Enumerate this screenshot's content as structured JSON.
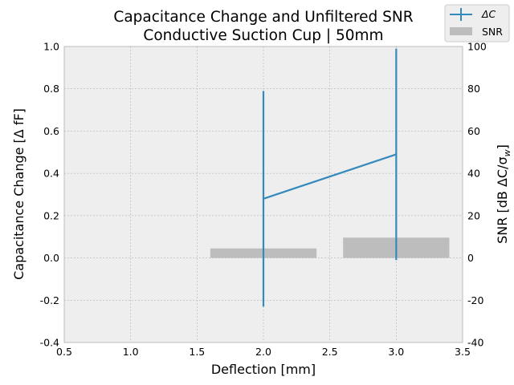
{
  "chart_data": {
    "type": "bar+errorbar",
    "title_lines": [
      "Capacitance Change and Unfiltered SNR",
      "Conductive Suction Cup | 50mm"
    ],
    "xlabel": "Deflection [mm]",
    "ylabel_left": "Capacitance Change [Δ fF]",
    "ylabel_right": "SNR [dB ΔC/σ",
    "ylabel_right_sub": "w",
    "ylabel_right_close": "]",
    "xlim": [
      0.5,
      3.5
    ],
    "ylim_left": [
      -0.4,
      1.0
    ],
    "ylim_right": [
      -40,
      100
    ],
    "x_ticks": [
      "0.5",
      "1.0",
      "1.5",
      "2.0",
      "2.5",
      "3.0",
      "3.5"
    ],
    "y_left_ticks": [
      "-0.4",
      "-0.2",
      "0.0",
      "0.2",
      "0.4",
      "0.6",
      "0.8",
      "1.0"
    ],
    "y_right_ticks": [
      "-40",
      "-20",
      "0",
      "20",
      "40",
      "60",
      "80",
      "100"
    ],
    "grid": true,
    "legend": {
      "position": "top-right",
      "entries": [
        "ΔC",
        "SNR"
      ]
    },
    "colors": {
      "line": "#348ABD",
      "bar": "#bdbdbd",
      "axes_bg": "#EEEEEE",
      "grid": "#b2b2b2"
    },
    "capacitance_series": {
      "name": "ΔC",
      "x": [
        2.0,
        3.0
      ],
      "y": [
        0.28,
        0.49
      ],
      "yerr": [
        0.51,
        0.5
      ]
    },
    "snr_series": {
      "name": "SNR",
      "x": [
        2.0,
        3.0
      ],
      "values": [
        4.5,
        9.6
      ],
      "bar_width": 0.8
    }
  }
}
